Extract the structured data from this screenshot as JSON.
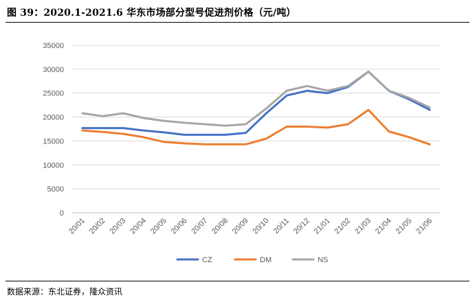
{
  "figure": {
    "title": "图 39：2020.1-2021.6 华东市场部分型号促进剂价格（元/吨）",
    "source": "数据来源：东北证券，隆众资讯"
  },
  "chart_data": {
    "type": "line",
    "title": "",
    "xlabel": "",
    "ylabel": "",
    "categories": [
      "20/01",
      "20/02",
      "20/03",
      "20/04",
      "20/05",
      "20/06",
      "20/07",
      "20/08",
      "20/09",
      "20/10",
      "20/11",
      "20/12",
      "21/01",
      "21/02",
      "21/03",
      "21/04",
      "21/05",
      "21/06"
    ],
    "ylim": [
      0,
      35000
    ],
    "yticks": [
      0,
      5000,
      10000,
      15000,
      20000,
      25000,
      30000,
      35000
    ],
    "grid": true,
    "legend_position": "bottom",
    "series": [
      {
        "name": "CZ",
        "color": "#4472C4",
        "values": [
          17700,
          17700,
          17700,
          17200,
          16800,
          16300,
          16300,
          16300,
          16700,
          20800,
          24500,
          25500,
          25000,
          26300,
          29500,
          25500,
          23700,
          21500
        ]
      },
      {
        "name": "DM",
        "color": "#ED7D31",
        "values": [
          17200,
          16900,
          16500,
          15800,
          14800,
          14500,
          14300,
          14300,
          14300,
          15500,
          18000,
          18000,
          17800,
          18500,
          21500,
          17000,
          15800,
          14300
        ]
      },
      {
        "name": "NS",
        "color": "#A5A5A5",
        "values": [
          20800,
          20200,
          20800,
          19800,
          19200,
          18800,
          18500,
          18200,
          18500,
          21800,
          25500,
          26500,
          25500,
          26500,
          29500,
          25500,
          24000,
          22000
        ]
      }
    ]
  }
}
